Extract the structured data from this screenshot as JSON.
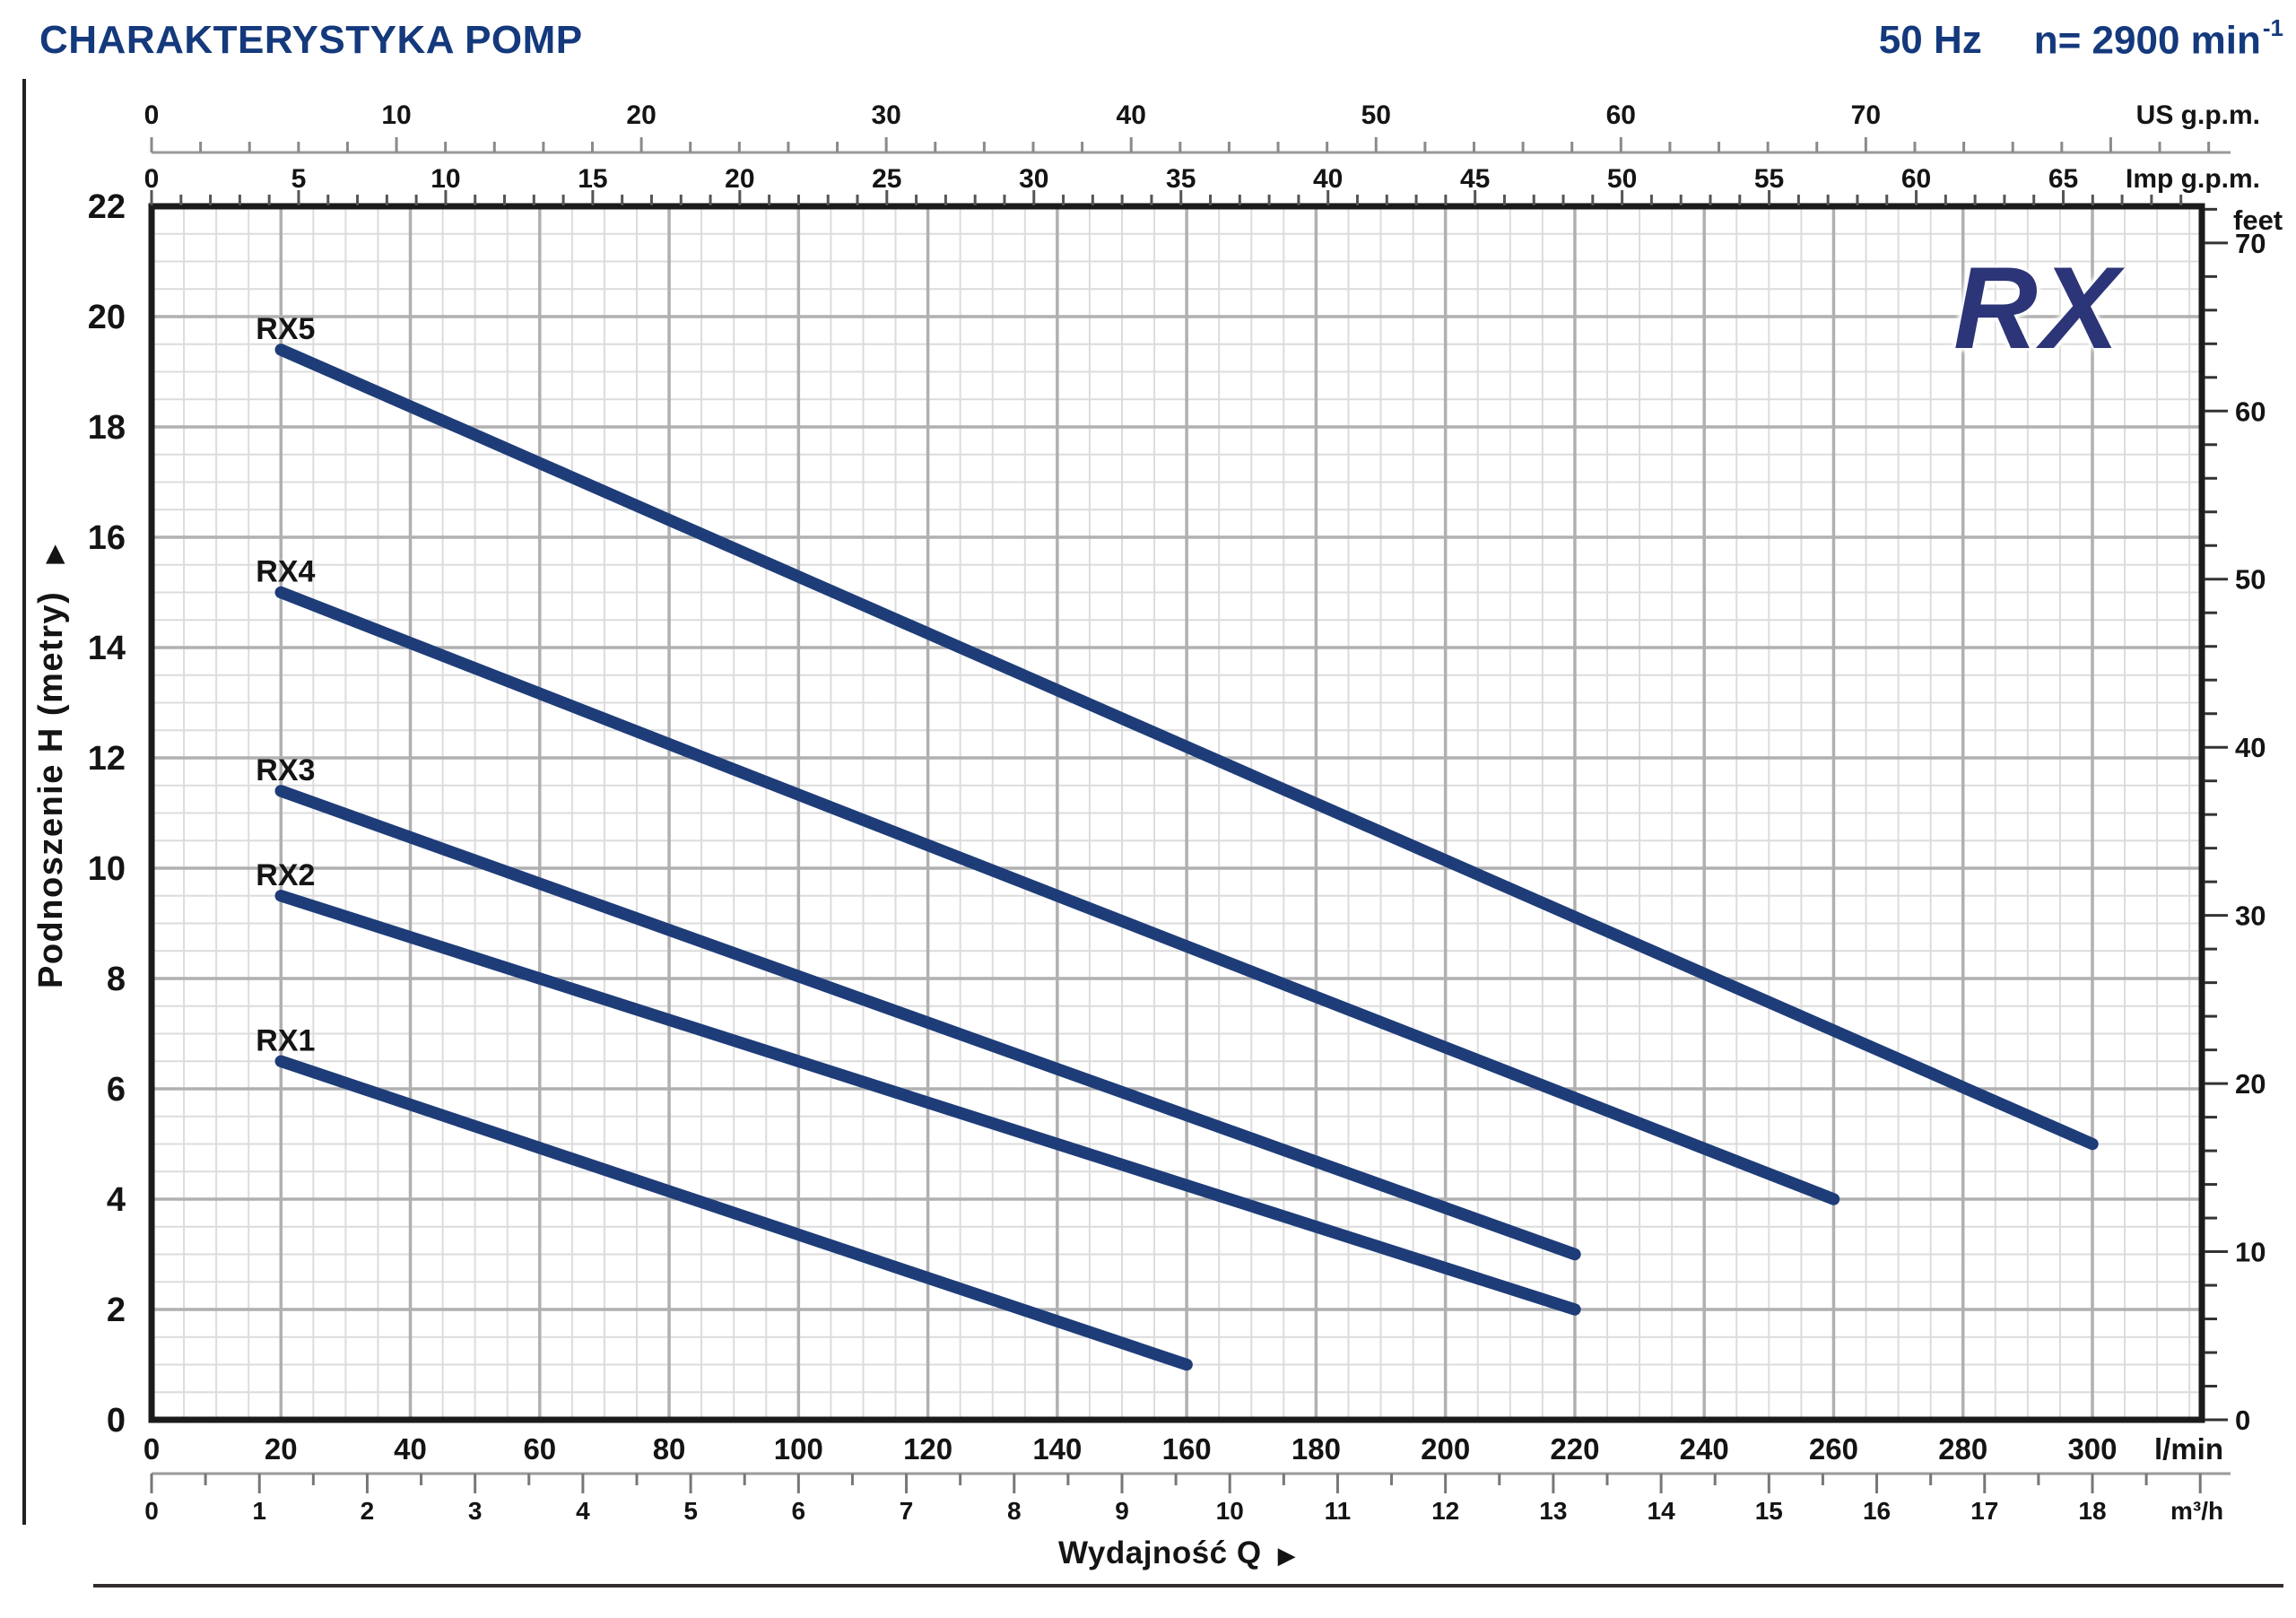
{
  "header": {
    "title": "CHARAKTERYSTYKA POMP",
    "frequency": "50 Hz",
    "speed": "n= 2900 min",
    "speed_exponent": "-1"
  },
  "logo": {
    "text": "RX"
  },
  "colors": {
    "navy_header": "#14397c",
    "navy_curve": "#1e3c78",
    "navy_logo": "#2c3577",
    "grid_minor": "#dcdcdc",
    "grid_major": "#b0b0b0",
    "axis_black": "#1b1b1b",
    "ruler_gray": "#9a9a9a"
  },
  "chart_data": {
    "type": "line",
    "title": "CHARAKTERYSTYKA POMP",
    "frequency": "50 Hz",
    "rotation_speed": "n= 2900 min-1",
    "xlabel": "Wydajność Q",
    "xlabel_arrow": "▶",
    "x_axis_primary": {
      "unit": "l/min",
      "tick_labels": [
        0,
        20,
        40,
        60,
        80,
        100,
        120,
        140,
        160,
        180,
        200,
        220,
        240,
        260,
        280,
        300
      ],
      "minor_step_lmin": 5,
      "range_lmin": [
        0,
        317
      ]
    },
    "x_axis_m3h": {
      "unit": "m³/h",
      "tick_labels": [
        0,
        1,
        2,
        3,
        4,
        5,
        6,
        7,
        8,
        9,
        10,
        11,
        12,
        13,
        14,
        15,
        16,
        17,
        18
      ],
      "minor_step": 0.5
    },
    "x_axis_us_gpm": {
      "unit": "US g.p.m.",
      "tick_labels": [
        0,
        10,
        20,
        30,
        40,
        50,
        60,
        70
      ],
      "minor_step": 2
    },
    "x_axis_imp_gpm": {
      "unit": "Imp g.p.m.",
      "tick_labels": [
        0,
        5,
        10,
        15,
        20,
        25,
        30,
        35,
        40,
        45,
        50,
        55,
        60,
        65
      ],
      "minor_step": 1
    },
    "y_axis_primary": {
      "label": "Podnoszenie H  (metry)",
      "arrow": "▶",
      "tick_labels": [
        0,
        2,
        4,
        6,
        8,
        10,
        12,
        14,
        16,
        18,
        20,
        22
      ],
      "minor_step_m": 0.5,
      "range_m": [
        0,
        22
      ]
    },
    "y_axis_feet": {
      "unit": "feet",
      "tick_labels": [
        0,
        10,
        20,
        30,
        40,
        50,
        60,
        70
      ],
      "minor_step": 2
    },
    "series": [
      {
        "name": "RX5",
        "points_lmin_m": [
          [
            20,
            19.4
          ],
          [
            300,
            5.0
          ]
        ]
      },
      {
        "name": "RX4",
        "points_lmin_m": [
          [
            20,
            15.0
          ],
          [
            260,
            4.0
          ]
        ]
      },
      {
        "name": "RX3",
        "points_lmin_m": [
          [
            20,
            11.4
          ],
          [
            220,
            3.0
          ]
        ]
      },
      {
        "name": "RX2",
        "points_lmin_m": [
          [
            20,
            9.5
          ],
          [
            220,
            2.0
          ]
        ]
      },
      {
        "name": "RX1",
        "points_lmin_m": [
          [
            20,
            6.5
          ],
          [
            160,
            1.0
          ]
        ]
      }
    ]
  }
}
